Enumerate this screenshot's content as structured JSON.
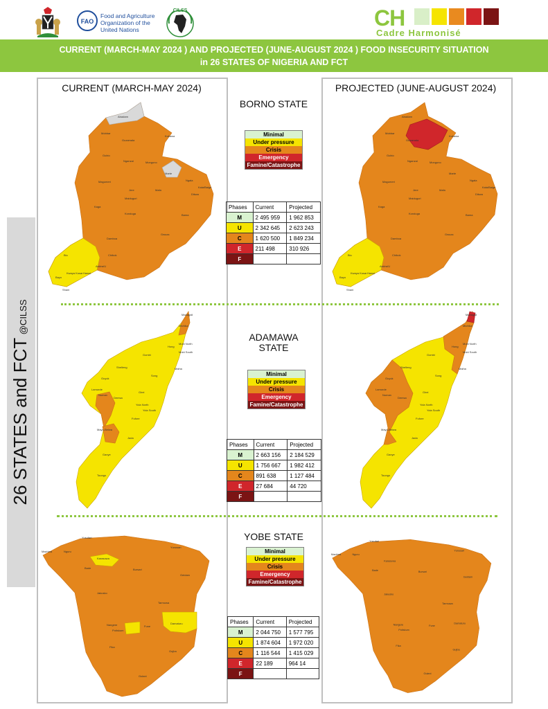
{
  "header": {
    "fao_text_lines": [
      "Food and Agriculture",
      "Organization of the",
      "United Nations"
    ],
    "cilss_label": "CILSS",
    "ch_abbr": "CH",
    "ch_name": "Cadre Harmonisé",
    "ch_colors": [
      "#d9efc8",
      "#f5e400",
      "#e98a1f",
      "#d0262b",
      "#7b1414"
    ],
    "title_line1": "CURRENT (MARCH-MAY 2024 ) AND PROJECTED (JUNE-AUGUST 2024 ) FOOD INSECURITY SITUATION",
    "title_line2": "in 26 STATES OF NIGERIA AND FCT"
  },
  "sidebar": {
    "main": "26 STATES and FCT",
    "handle": "@CILSS"
  },
  "columns": {
    "current": "CURRENT (MARCH-MAY 2024)",
    "projected": "PROJECTED (JUNE-AUGUST 2024)"
  },
  "legend": {
    "items": [
      "Minimal",
      "Under pressure",
      "Crisis",
      "Emergency",
      "Famine/Catastrophe"
    ],
    "colors": [
      "#d9f2d0",
      "#f5e400",
      "#e4861c",
      "#d0262b",
      "#7b1414"
    ]
  },
  "table_headers": [
    "Phases",
    "Current",
    "Projected"
  ],
  "phase_codes": [
    "M",
    "U",
    "C",
    "E",
    "F"
  ],
  "states": [
    {
      "name": "BORNO STATE",
      "rows": [
        [
          "2 495 959",
          "1 962 853"
        ],
        [
          "2 342 645",
          "2 623 243"
        ],
        [
          "1 620 500",
          "1 849 234"
        ],
        [
          "211 498",
          "310 926"
        ],
        [
          "",
          ""
        ]
      ],
      "current_labels": [
        "Abadam",
        "Mobbar",
        "Kukawa",
        "Guzamala",
        "Gubio",
        "Nganzai",
        "Monguno",
        "Marte",
        "Ngala",
        "Magumeri",
        "Jere",
        "Mafa",
        "Dikwa",
        "Kala/Balge",
        "Maiduguri",
        "Kaga",
        "Konduga",
        "Bama",
        "Gwoza",
        "Damboa",
        "Chibok",
        "Askira/U",
        "Biu",
        "Hawul",
        "Bayo",
        "Kwaya Kusar",
        "Shani"
      ],
      "projected_labels": [
        "Abadam",
        "Mobbar",
        "Kukawa",
        "Guzamala",
        "Gubio",
        "Nganzai",
        "Monguno",
        "Marte",
        "Ngala",
        "Magumeri",
        "Jere",
        "Mafa",
        "Dikwa",
        "Kala/Balge",
        "Maiduguri",
        "Kaga",
        "Konduga",
        "Bama",
        "Gwoza",
        "Damboa",
        "Chibok",
        "Askira/U",
        "Biu",
        "Hawul",
        "Bayo",
        "Kwaya Kusar",
        "Shani"
      ]
    },
    {
      "name": "ADAMAWA STATE",
      "rows": [
        [
          "2 663 156",
          "2 184 529"
        ],
        [
          "1 756 667",
          "1 982 412"
        ],
        [
          "891 638",
          "1 127 484"
        ],
        [
          "27 684",
          "44 720"
        ],
        [
          "",
          ""
        ]
      ],
      "current_labels": [
        "Madagali",
        "Michika",
        "Hong",
        "Mubi North",
        "Mubi South",
        "Gombi",
        "Maiha",
        "Shelleng",
        "Song",
        "Guyuk",
        "Lamurde",
        "Numan",
        "Demsa",
        "Girei",
        "Yola North",
        "Yola South",
        "Fufore",
        "Mayo-Belwa",
        "Jada",
        "Ganye",
        "Toungo"
      ],
      "projected_labels": [
        "Madagali",
        "Michika",
        "Hong",
        "Mubi North",
        "Mubi South",
        "Gombi",
        "Maiha",
        "Shelleng",
        "Song",
        "Guyuk",
        "Lamurde",
        "Numan",
        "Demsa",
        "Girei",
        "Yola North",
        "Yola South",
        "Fufore",
        "Mayo-Belwa",
        "Jada",
        "Ganye",
        "Toungo"
      ]
    },
    {
      "name": "YOBE STATE",
      "rows": [
        [
          "2 044 750",
          "1 577 795"
        ],
        [
          "1 874 604",
          "1 972 020"
        ],
        [
          "1 116 544",
          "1 415 029"
        ],
        [
          "22 189",
          "964 14"
        ],
        [
          "",
          ""
        ]
      ],
      "current_labels": [
        "Yusufari",
        "Yunusari",
        "Machina",
        "Nguru",
        "Karasuwa",
        "Bade",
        "Bursari",
        "Geidam",
        "Jakusko",
        "Tarmuwa",
        "Damaturu",
        "Nangere",
        "Potiskum",
        "Fune",
        "Fika",
        "Gujba",
        "Gulani"
      ],
      "projected_labels": [
        "Yusufari",
        "Yunusari",
        "Machina",
        "Nguru",
        "Karasuwa",
        "Bade",
        "Bursari",
        "Geidam",
        "Jakusko",
        "Tarmuwa",
        "Damaturu",
        "Nangere",
        "Potiskum",
        "Fune",
        "Fika",
        "Gujba",
        "Gulani"
      ]
    }
  ]
}
